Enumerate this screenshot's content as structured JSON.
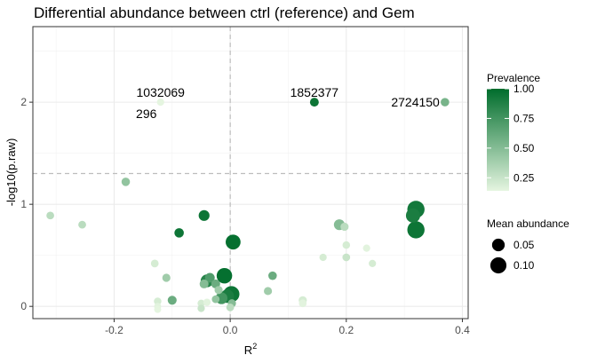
{
  "chart_data": {
    "type": "scatter",
    "title": "Differential abundance between ctrl (reference) and Gem",
    "xlabel": "R",
    "xlabel_superscript": "2",
    "ylabel": "-log10(p.raw)",
    "xlim": [
      -0.34,
      0.41
    ],
    "ylim": [
      -0.12,
      2.74
    ],
    "x_ticks": [
      {
        "value": -0.2,
        "label": "-0.2"
      },
      {
        "value": 0.0,
        "label": "0.0"
      },
      {
        "value": 0.2,
        "label": "0.2"
      },
      {
        "value": 0.4,
        "label": "0.4"
      }
    ],
    "y_ticks": [
      {
        "value": 0,
        "label": "0"
      },
      {
        "value": 1,
        "label": "1"
      },
      {
        "value": 2,
        "label": "2"
      }
    ],
    "minor_x": [
      -0.3,
      -0.1,
      0.1,
      0.3
    ],
    "minor_y": [
      0.5,
      1.5,
      2.5
    ],
    "reference_lines": {
      "vertical_x": 0.0,
      "horizontal_y": 1.301
    },
    "grid": true,
    "legend_position": "right",
    "color_legend": {
      "title": "Prevalence",
      "ticks": [
        {
          "value": 1.0,
          "label": "1.00"
        },
        {
          "value": 0.75,
          "label": "0.75"
        },
        {
          "value": 0.5,
          "label": "0.50"
        },
        {
          "value": 0.25,
          "label": "0.25"
        }
      ],
      "range": [
        0.14,
        1.0
      ],
      "low_color": "#e5f5e0",
      "high_color": "#006d2c"
    },
    "size_legend": {
      "title": "Mean abundance",
      "entries": [
        {
          "value": 0.05,
          "label": "0.05"
        },
        {
          "value": 0.1,
          "label": "0.10"
        }
      ],
      "range": [
        0.0,
        0.13
      ]
    },
    "annotations": [
      {
        "x": -0.12,
        "y": 2.0,
        "label": "1032069",
        "position": "above"
      },
      {
        "x": -0.12,
        "y": 2.0,
        "label": "296",
        "position": "below-left"
      },
      {
        "x": 0.145,
        "y": 2.0,
        "label": "1852377",
        "position": "above"
      },
      {
        "x": 0.37,
        "y": 2.0,
        "label": "2724150",
        "position": "left"
      }
    ],
    "points": [
      {
        "x": 0.37,
        "y": 2.0,
        "prevalence": 0.55,
        "abundance": 0.012
      },
      {
        "x": 0.145,
        "y": 2.0,
        "prevalence": 0.95,
        "abundance": 0.014
      },
      {
        "x": -0.12,
        "y": 2.0,
        "prevalence": 0.14,
        "abundance": 0.006
      },
      {
        "x": -0.18,
        "y": 1.22,
        "prevalence": 0.45,
        "abundance": 0.012
      },
      {
        "x": -0.31,
        "y": 0.89,
        "prevalence": 0.3,
        "abundance": 0.008
      },
      {
        "x": -0.255,
        "y": 0.8,
        "prevalence": 0.3,
        "abundance": 0.008
      },
      {
        "x": -0.045,
        "y": 0.89,
        "prevalence": 0.95,
        "abundance": 0.03
      },
      {
        "x": -0.088,
        "y": 0.72,
        "prevalence": 0.95,
        "abundance": 0.018
      },
      {
        "x": 0.005,
        "y": 0.63,
        "prevalence": 0.98,
        "abundance": 0.08
      },
      {
        "x": 0.188,
        "y": 0.8,
        "prevalence": 0.5,
        "abundance": 0.03
      },
      {
        "x": 0.197,
        "y": 0.78,
        "prevalence": 0.3,
        "abundance": 0.01
      },
      {
        "x": 0.2,
        "y": 0.6,
        "prevalence": 0.2,
        "abundance": 0.007
      },
      {
        "x": 0.235,
        "y": 0.57,
        "prevalence": 0.15,
        "abundance": 0.006
      },
      {
        "x": 0.2,
        "y": 0.48,
        "prevalence": 0.25,
        "abundance": 0.008
      },
      {
        "x": 0.16,
        "y": 0.48,
        "prevalence": 0.2,
        "abundance": 0.006
      },
      {
        "x": 0.245,
        "y": 0.42,
        "prevalence": 0.2,
        "abundance": 0.006
      },
      {
        "x": 0.32,
        "y": 0.95,
        "prevalence": 0.93,
        "abundance": 0.12
      },
      {
        "x": 0.315,
        "y": 0.89,
        "prevalence": 0.9,
        "abundance": 0.07
      },
      {
        "x": 0.32,
        "y": 0.75,
        "prevalence": 0.95,
        "abundance": 0.12
      },
      {
        "x": -0.13,
        "y": 0.42,
        "prevalence": 0.2,
        "abundance": 0.008
      },
      {
        "x": -0.11,
        "y": 0.28,
        "prevalence": 0.4,
        "abundance": 0.01
      },
      {
        "x": -0.04,
        "y": 0.25,
        "prevalence": 0.85,
        "abundance": 0.05
      },
      {
        "x": -0.035,
        "y": 0.28,
        "prevalence": 0.7,
        "abundance": 0.02
      },
      {
        "x": -0.025,
        "y": 0.22,
        "prevalence": 0.6,
        "abundance": 0.015
      },
      {
        "x": -0.01,
        "y": 0.3,
        "prevalence": 0.98,
        "abundance": 0.09
      },
      {
        "x": -0.045,
        "y": 0.22,
        "prevalence": 0.5,
        "abundance": 0.015
      },
      {
        "x": -0.02,
        "y": 0.16,
        "prevalence": 0.4,
        "abundance": 0.01
      },
      {
        "x": 0.073,
        "y": 0.3,
        "prevalence": 0.6,
        "abundance": 0.012
      },
      {
        "x": 0.065,
        "y": 0.15,
        "prevalence": 0.4,
        "abundance": 0.01
      },
      {
        "x": 0.002,
        "y": 0.12,
        "prevalence": 0.95,
        "abundance": 0.1
      },
      {
        "x": -0.005,
        "y": 0.1,
        "prevalence": 0.9,
        "abundance": 0.06
      },
      {
        "x": -0.015,
        "y": 0.08,
        "prevalence": 0.75,
        "abundance": 0.04
      },
      {
        "x": -0.1,
        "y": 0.06,
        "prevalence": 0.6,
        "abundance": 0.015
      },
      {
        "x": -0.125,
        "y": 0.05,
        "prevalence": 0.2,
        "abundance": 0.007
      },
      {
        "x": -0.125,
        "y": 0.0,
        "prevalence": 0.15,
        "abundance": 0.005
      },
      {
        "x": -0.125,
        "y": -0.03,
        "prevalence": 0.14,
        "abundance": 0.005
      },
      {
        "x": -0.05,
        "y": 0.03,
        "prevalence": 0.2,
        "abundance": 0.006
      },
      {
        "x": -0.04,
        "y": 0.04,
        "prevalence": 0.15,
        "abundance": 0.006
      },
      {
        "x": -0.025,
        "y": 0.07,
        "prevalence": 0.45,
        "abundance": 0.008
      },
      {
        "x": -0.05,
        "y": -0.02,
        "prevalence": 0.25,
        "abundance": 0.006
      },
      {
        "x": 0.0,
        "y": -0.01,
        "prevalence": 0.3,
        "abundance": 0.008
      },
      {
        "x": 0.003,
        "y": 0.03,
        "prevalence": 0.5,
        "abundance": 0.01
      },
      {
        "x": 0.125,
        "y": 0.06,
        "prevalence": 0.2,
        "abundance": 0.01
      },
      {
        "x": 0.125,
        "y": 0.03,
        "prevalence": 0.15,
        "abundance": 0.008
      }
    ]
  }
}
